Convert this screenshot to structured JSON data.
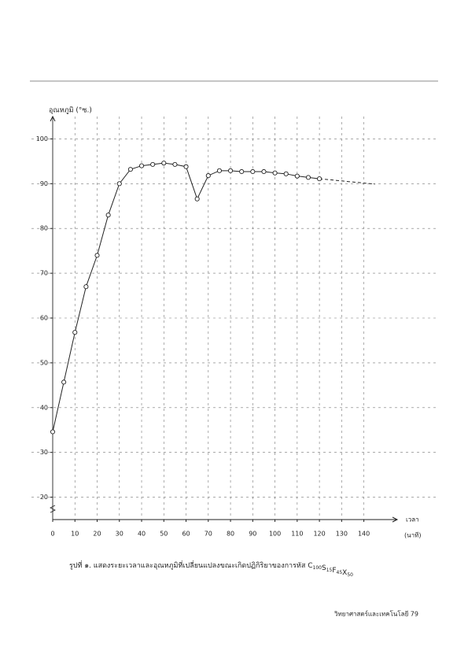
{
  "chart_data": {
    "type": "line",
    "y_label": "อุณหภูมิ (°ซ.)",
    "x_label": "เวลา",
    "x_unit": "(นาที)",
    "x": [
      0,
      5,
      10,
      15,
      20,
      25,
      30,
      35,
      40,
      45,
      50,
      55,
      60,
      65,
      70,
      75,
      80,
      85,
      90,
      95,
      100,
      105,
      110,
      115,
      120
    ],
    "values": [
      34.6,
      45.7,
      56.8,
      67,
      74,
      83,
      90,
      93.2,
      94,
      94.3,
      94.6,
      94.3,
      93.8,
      86.6,
      91.8,
      92.9,
      92.9,
      92.7,
      92.7,
      92.7,
      92.4,
      92.2,
      91.7,
      91.4,
      91.1
    ],
    "extrapolation": {
      "x": [
        120,
        145
      ],
      "values": [
        91.1,
        89.9
      ]
    },
    "color": "#222222",
    "xlim": [
      0,
      155
    ],
    "ylim": [
      15,
      105
    ],
    "xticks": [
      0,
      10,
      20,
      30,
      40,
      50,
      60,
      70,
      80,
      90,
      100,
      110,
      120,
      130,
      140
    ],
    "yticks": [
      20,
      30,
      40,
      50,
      60,
      70,
      80,
      90,
      100
    ],
    "grid": true,
    "caption": "รูปที่ ๑. แสดงระยะเวลาและอุณหภูมิที่เปลี่ยนแปลงขณะเกิดปฏิกิริยาของการหัส",
    "formula": [
      {
        "symbol": "C",
        "sub": "100"
      },
      {
        "symbol": "S",
        "sub": "15"
      },
      {
        "symbol": "F",
        "sub": "45"
      },
      {
        "symbol": "X",
        "sub": "50"
      }
    ]
  },
  "footer": "วิทยาศาสตร์และเทคโนโลยี 79"
}
